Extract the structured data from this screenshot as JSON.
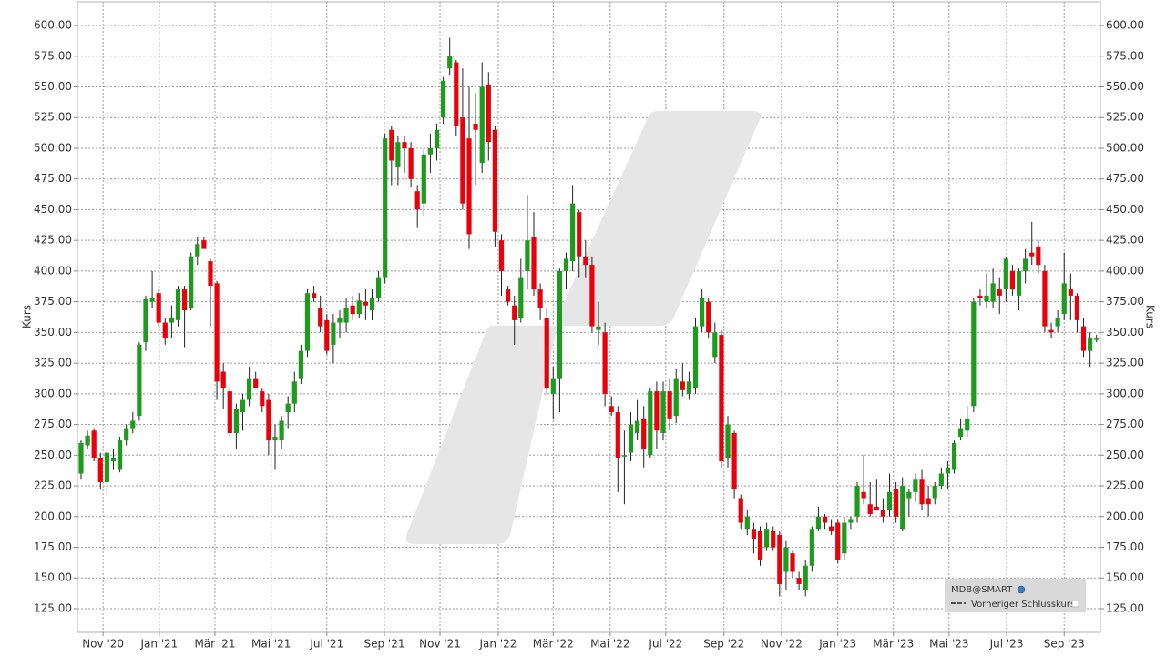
{
  "chart_data": {
    "type": "candlestick",
    "ylabel": "Kurs",
    "legend_position": "lower right",
    "legend_extra": "Vorheriger Schlusskurs",
    "grid": true,
    "ylim": [
      105.7,
      619.3
    ],
    "yticks": [
      {
        "value": 125,
        "label": "125.00"
      },
      {
        "value": 150,
        "label": "150.00"
      },
      {
        "value": 175,
        "label": "175.00"
      },
      {
        "value": 200,
        "label": "200.00"
      },
      {
        "value": 225,
        "label": "225.00"
      },
      {
        "value": 250,
        "label": "250.00"
      },
      {
        "value": 275,
        "label": "275.00"
      },
      {
        "value": 300,
        "label": "300.00"
      },
      {
        "value": 325,
        "label": "325.00"
      },
      {
        "value": 350,
        "label": "350.00"
      },
      {
        "value": 375,
        "label": "375.00"
      },
      {
        "value": 400,
        "label": "400.00"
      },
      {
        "value": 425,
        "label": "425.00"
      },
      {
        "value": 450,
        "label": "450.00"
      },
      {
        "value": 475,
        "label": "475.00"
      },
      {
        "value": 500,
        "label": "500.00"
      },
      {
        "value": 525,
        "label": "525.00"
      },
      {
        "value": 550,
        "label": "550.00"
      },
      {
        "value": 575,
        "label": "575.00"
      },
      {
        "value": 600,
        "label": "600.00"
      }
    ],
    "xlim": [
      -0.56,
      157.6
    ],
    "xticks": [
      {
        "value": 3.4,
        "label": "Nov '20"
      },
      {
        "value": 12.1,
        "label": "Jan '21"
      },
      {
        "value": 20.7,
        "label": "Mär '21"
      },
      {
        "value": 29.4,
        "label": "Mai '21"
      },
      {
        "value": 38.0,
        "label": "Jul '21"
      },
      {
        "value": 46.9,
        "label": "Sep '21"
      },
      {
        "value": 55.5,
        "label": "Nov '21"
      },
      {
        "value": 64.5,
        "label": "Jan '22"
      },
      {
        "value": 73.0,
        "label": "Mär '22"
      },
      {
        "value": 81.8,
        "label": "Mai '22"
      },
      {
        "value": 90.4,
        "label": "Jul '22"
      },
      {
        "value": 99.4,
        "label": "Sep '22"
      },
      {
        "value": 108.3,
        "label": "Nov '22"
      },
      {
        "value": 117.0,
        "label": "Jan '23"
      },
      {
        "value": 125.6,
        "label": "Mär '23"
      },
      {
        "value": 134.2,
        "label": "Mai '23"
      },
      {
        "value": 143.1,
        "label": "Jul '23"
      },
      {
        "value": 152.0,
        "label": "Sep '23"
      }
    ],
    "series": [
      {
        "name": "MDB@SMART",
        "up_color": "#1c9b1c",
        "down_color": "#e8000b",
        "ohlc": [
          [
            235,
            262,
            230,
            260
          ],
          [
            258,
            270,
            255,
            266
          ],
          [
            270,
            272,
            245,
            248
          ],
          [
            248,
            252,
            222,
            228
          ],
          [
            228,
            255,
            218,
            252
          ],
          [
            245,
            255,
            238,
            248
          ],
          [
            238,
            265,
            236,
            262
          ],
          [
            262,
            275,
            258,
            272
          ],
          [
            272,
            285,
            268,
            278
          ],
          [
            282,
            342,
            278,
            340
          ],
          [
            342,
            380,
            335,
            377
          ],
          [
            375,
            400,
            370,
            378
          ],
          [
            382,
            385,
            355,
            358
          ],
          [
            358,
            362,
            340,
            345
          ],
          [
            358,
            372,
            345,
            362
          ],
          [
            360,
            388,
            355,
            385
          ],
          [
            385,
            388,
            338,
            368
          ],
          [
            370,
            415,
            368,
            412
          ],
          [
            412,
            428,
            405,
            422
          ],
          [
            425,
            428,
            418,
            418
          ],
          [
            408,
            410,
            355,
            388
          ],
          [
            390,
            392,
            295,
            310
          ],
          [
            318,
            325,
            288,
            305
          ],
          [
            302,
            305,
            265,
            268
          ],
          [
            268,
            292,
            255,
            288
          ],
          [
            285,
            300,
            270,
            295
          ],
          [
            295,
            322,
            290,
            312
          ],
          [
            312,
            318,
            305,
            305
          ],
          [
            302,
            305,
            285,
            290
          ],
          [
            295,
            300,
            250,
            262
          ],
          [
            262,
            275,
            238,
            265
          ],
          [
            262,
            282,
            255,
            278
          ],
          [
            285,
            298,
            272,
            292
          ],
          [
            292,
            318,
            285,
            310
          ],
          [
            312,
            340,
            308,
            335
          ],
          [
            335,
            385,
            330,
            382
          ],
          [
            382,
            388,
            375,
            378
          ],
          [
            370,
            380,
            350,
            355
          ],
          [
            360,
            365,
            332,
            335
          ],
          [
            340,
            365,
            325,
            358
          ],
          [
            358,
            368,
            345,
            362
          ],
          [
            358,
            378,
            350,
            370
          ],
          [
            372,
            380,
            360,
            365
          ],
          [
            365,
            382,
            362,
            376
          ],
          [
            375,
            385,
            360,
            372
          ],
          [
            368,
            385,
            360,
            378
          ],
          [
            378,
            400,
            375,
            395
          ],
          [
            395,
            512,
            390,
            508
          ],
          [
            515,
            518,
            470,
            490
          ],
          [
            485,
            510,
            470,
            505
          ],
          [
            505,
            510,
            480,
            500
          ],
          [
            500,
            505,
            468,
            475
          ],
          [
            465,
            470,
            435,
            450
          ],
          [
            455,
            500,
            445,
            495
          ],
          [
            495,
            512,
            480,
            500
          ],
          [
            500,
            520,
            490,
            515
          ],
          [
            525,
            558,
            520,
            555
          ],
          [
            565,
            590,
            560,
            575
          ],
          [
            570,
            572,
            510,
            518
          ],
          [
            525,
            565,
            450,
            455
          ],
          [
            508,
            550,
            418,
            430
          ],
          [
            520,
            545,
            470,
            515
          ],
          [
            488,
            570,
            480,
            550
          ],
          [
            552,
            562,
            490,
            505
          ],
          [
            515,
            518,
            420,
            432
          ],
          [
            425,
            430,
            380,
            400
          ],
          [
            385,
            388,
            372,
            375
          ],
          [
            372,
            380,
            340,
            360
          ],
          [
            362,
            410,
            358,
            395
          ],
          [
            400,
            462,
            385,
            425
          ],
          [
            428,
            448,
            380,
            385
          ],
          [
            385,
            390,
            360,
            370
          ],
          [
            362,
            370,
            300,
            305
          ],
          [
            300,
            322,
            280,
            312
          ],
          [
            312,
            402,
            285,
            400
          ],
          [
            400,
            415,
            385,
            410
          ],
          [
            408,
            470,
            400,
            455
          ],
          [
            448,
            450,
            395,
            412
          ],
          [
            412,
            425,
            395,
            405
          ],
          [
            405,
            412,
            350,
            355
          ],
          [
            352,
            375,
            340,
            355
          ],
          [
            350,
            358,
            290,
            300
          ],
          [
            290,
            298,
            282,
            285
          ],
          [
            285,
            290,
            220,
            248
          ],
          [
            250,
            270,
            210,
            250
          ],
          [
            252,
            285,
            245,
            275
          ],
          [
            268,
            295,
            262,
            278
          ],
          [
            280,
            290,
            240,
            255
          ],
          [
            250,
            305,
            248,
            302
          ],
          [
            302,
            310,
            255,
            270
          ],
          [
            268,
            310,
            262,
            302
          ],
          [
            302,
            312,
            270,
            280
          ],
          [
            282,
            320,
            276,
            312
          ],
          [
            310,
            325,
            298,
            303
          ],
          [
            300,
            318,
            295,
            310
          ],
          [
            305,
            362,
            300,
            355
          ],
          [
            355,
            385,
            350,
            378
          ],
          [
            375,
            378,
            345,
            350
          ],
          [
            330,
            358,
            325,
            350
          ],
          [
            348,
            352,
            240,
            245
          ],
          [
            248,
            282,
            240,
            275
          ],
          [
            268,
            270,
            215,
            222
          ],
          [
            215,
            218,
            190,
            195
          ],
          [
            190,
            205,
            185,
            200
          ],
          [
            190,
            195,
            170,
            182
          ],
          [
            188,
            192,
            160,
            165
          ],
          [
            175,
            195,
            172,
            190
          ],
          [
            188,
            192,
            172,
            175
          ],
          [
            185,
            188,
            135,
            145
          ],
          [
            155,
            180,
            140,
            175
          ],
          [
            170,
            172,
            150,
            155
          ],
          [
            150,
            155,
            140,
            145
          ],
          [
            140,
            165,
            135,
            160
          ],
          [
            160,
            192,
            155,
            190
          ],
          [
            190,
            208,
            188,
            200
          ],
          [
            200,
            202,
            190,
            195
          ],
          [
            192,
            198,
            185,
            188
          ],
          [
            195,
            198,
            162,
            165
          ],
          [
            170,
            200,
            165,
            195
          ],
          [
            195,
            200,
            190,
            198
          ],
          [
            200,
            228,
            195,
            225
          ],
          [
            220,
            250,
            210,
            215
          ],
          [
            210,
            228,
            200,
            202
          ],
          [
            208,
            230,
            205,
            205
          ],
          [
            205,
            215,
            195,
            200
          ],
          [
            205,
            235,
            200,
            220
          ],
          [
            222,
            228,
            195,
            200
          ],
          [
            190,
            232,
            188,
            225
          ],
          [
            215,
            222,
            200,
            220
          ],
          [
            220,
            235,
            212,
            230
          ],
          [
            230,
            238,
            205,
            210
          ],
          [
            215,
            225,
            200,
            210
          ],
          [
            215,
            228,
            210,
            225
          ],
          [
            225,
            240,
            222,
            235
          ],
          [
            235,
            245,
            222,
            240
          ],
          [
            238,
            262,
            235,
            260
          ],
          [
            265,
            280,
            262,
            272
          ],
          [
            270,
            290,
            265,
            280
          ],
          [
            290,
            378,
            285,
            375
          ],
          [
            380,
            385,
            372,
            378
          ],
          [
            375,
            398,
            370,
            380
          ],
          [
            375,
            402,
            370,
            390
          ],
          [
            385,
            395,
            365,
            380
          ],
          [
            385,
            412,
            375,
            410
          ],
          [
            400,
            405,
            380,
            385
          ],
          [
            380,
            402,
            368,
            400
          ],
          [
            400,
            418,
            390,
            410
          ],
          [
            415,
            440,
            405,
            412
          ],
          [
            420,
            425,
            398,
            405
          ],
          [
            400,
            405,
            350,
            355
          ],
          [
            352,
            358,
            345,
            350
          ],
          [
            355,
            368,
            350,
            362
          ],
          [
            365,
            415,
            360,
            390
          ],
          [
            385,
            398,
            360,
            380
          ],
          [
            380,
            382,
            350,
            360
          ],
          [
            355,
            362,
            330,
            335
          ],
          [
            335,
            350,
            322,
            345
          ],
          [
            345,
            348,
            342,
            345
          ]
        ]
      }
    ]
  }
}
